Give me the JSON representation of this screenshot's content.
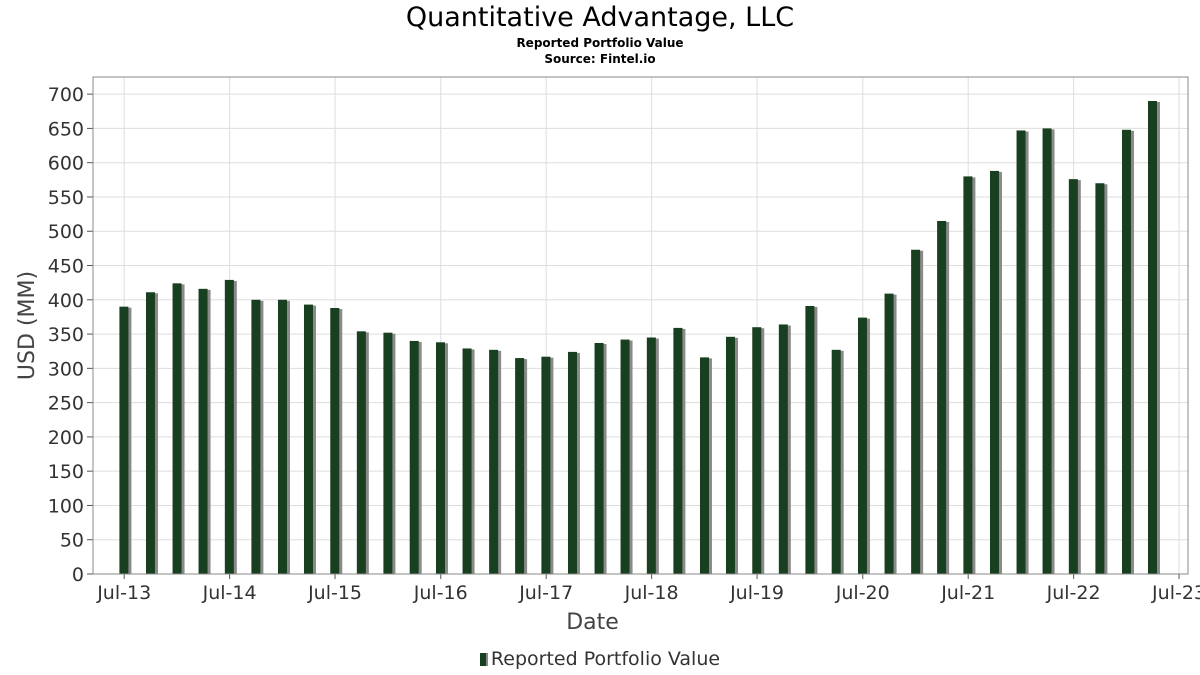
{
  "header": {
    "title": "Quantitative Advantage, LLC",
    "subtitle": "Reported Portfolio Value",
    "source": "Source: Fintel.io"
  },
  "legend": {
    "label": "Reported Portfolio Value"
  },
  "colors": {
    "bar": "#183f1f",
    "bar_shadow": "#8a8a8a",
    "grid": "#dddddd",
    "frame": "#888888"
  },
  "chart_data": {
    "type": "bar",
    "title": "Quantitative Advantage, LLC",
    "subtitle": "Reported Portfolio Value",
    "xlabel": "Date",
    "ylabel": "USD (MM)",
    "ylim": [
      0,
      725
    ],
    "yticks": [
      0,
      50,
      100,
      150,
      200,
      250,
      300,
      350,
      400,
      450,
      500,
      550,
      600,
      650,
      700
    ],
    "xlim": [
      "2013-03-15",
      "2023-08-01"
    ],
    "xticks": [
      {
        "date": "2013-07-01",
        "label": "Jul-13"
      },
      {
        "date": "2014-07-01",
        "label": "Jul-14"
      },
      {
        "date": "2015-07-01",
        "label": "Jul-15"
      },
      {
        "date": "2016-07-01",
        "label": "Jul-16"
      },
      {
        "date": "2017-07-01",
        "label": "Jul-17"
      },
      {
        "date": "2018-07-01",
        "label": "Jul-18"
      },
      {
        "date": "2019-07-01",
        "label": "Jul-19"
      },
      {
        "date": "2020-07-01",
        "label": "Jul-20"
      },
      {
        "date": "2021-07-01",
        "label": "Jul-21"
      },
      {
        "date": "2022-07-01",
        "label": "Jul-22"
      },
      {
        "date": "2023-07-01",
        "label": "Jul-23"
      }
    ],
    "grid": true,
    "legend_position": "bottom-center",
    "series": [
      {
        "name": "Reported Portfolio Value",
        "x": [
          "2013-06-30",
          "2013-09-30",
          "2013-12-31",
          "2014-03-31",
          "2014-06-30",
          "2014-09-30",
          "2014-12-31",
          "2015-03-31",
          "2015-06-30",
          "2015-09-30",
          "2015-12-31",
          "2016-03-31",
          "2016-06-30",
          "2016-09-30",
          "2016-12-31",
          "2017-03-31",
          "2017-06-30",
          "2017-09-30",
          "2017-12-31",
          "2018-03-31",
          "2018-06-30",
          "2018-09-30",
          "2018-12-31",
          "2019-03-31",
          "2019-06-30",
          "2019-09-30",
          "2019-12-31",
          "2020-03-31",
          "2020-06-30",
          "2020-09-30",
          "2020-12-31",
          "2021-03-31",
          "2021-06-30",
          "2021-09-30",
          "2021-12-31",
          "2022-03-31",
          "2022-06-30",
          "2022-09-30",
          "2022-12-31",
          "2023-03-31"
        ],
        "values": [
          390,
          411,
          424,
          416,
          429,
          400,
          400,
          393,
          388,
          354,
          352,
          340,
          338,
          329,
          327,
          315,
          317,
          324,
          337,
          342,
          345,
          359,
          316,
          346,
          360,
          364,
          391,
          327,
          374,
          409,
          473,
          515,
          580,
          588,
          647,
          650,
          576,
          570,
          648,
          690
        ]
      }
    ]
  }
}
